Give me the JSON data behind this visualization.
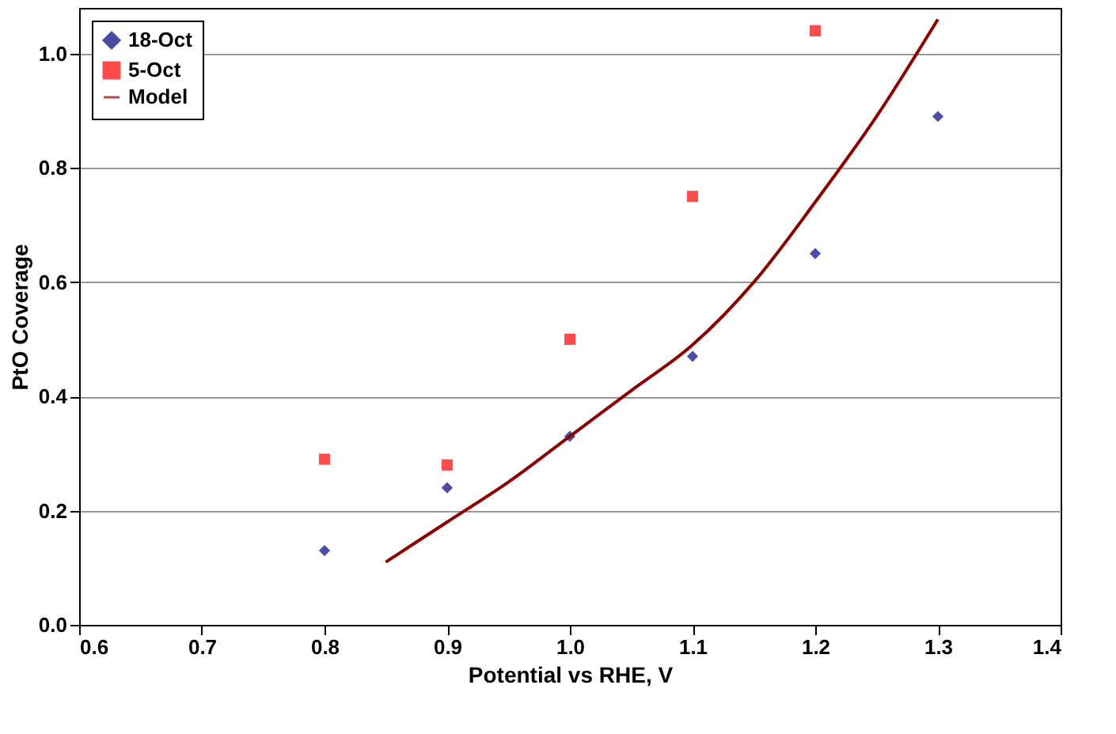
{
  "chart_data": {
    "type": "scatter",
    "xlabel": "Potential vs RHE, V",
    "ylabel": "PtO Coverage",
    "xlim": [
      0.6,
      1.4
    ],
    "xticks": [
      0.6,
      0.7,
      0.8,
      0.9,
      {
        "value": 1,
        "label": "1.0"
      },
      1.1,
      1.2,
      1.3,
      1.4
    ],
    "ylim": [
      0,
      1.08
    ],
    "yticks": [
      {
        "value": 0,
        "label": "0.0"
      },
      0.2,
      0.4,
      0.6,
      0.8,
      {
        "value": 1,
        "label": "1.0"
      }
    ],
    "grid": "y",
    "legend": "top left",
    "series": [
      {
        "name": "18-Oct",
        "color": "#000080",
        "marker": "diamond",
        "x": [
          0.8,
          0.9,
          1.0,
          1.1,
          1.2,
          1.3
        ],
        "values": [
          0.13,
          0.24,
          0.33,
          0.47,
          0.65,
          0.89
        ]
      },
      {
        "name": "5-Oct",
        "color": "#ff0000",
        "marker": "square",
        "x": [
          0.8,
          0.9,
          1.0,
          1.1,
          1.2
        ],
        "values": [
          0.29,
          0.28,
          0.5,
          0.75,
          1.04
        ]
      },
      {
        "name": "Model",
        "type": "line",
        "color": "#8b0000",
        "x": [
          0.85,
          0.9,
          0.95,
          1.0,
          1.05,
          1.1,
          1.15,
          1.2,
          1.25,
          1.3
        ],
        "values": [
          0.11,
          0.18,
          0.25,
          0.33,
          0.41,
          0.49,
          0.6,
          0.74,
          0.89,
          1.06
        ]
      }
    ]
  }
}
